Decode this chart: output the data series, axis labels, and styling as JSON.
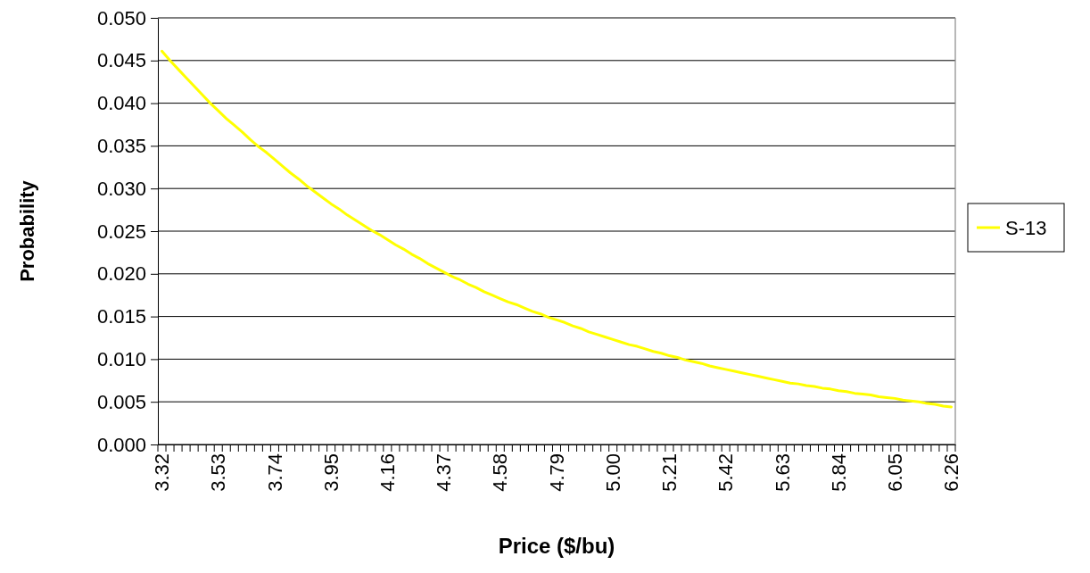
{
  "chart_data": {
    "type": "line",
    "xlabel": "Price ($/bu)",
    "ylabel": "Probability",
    "categories": [
      "3.32",
      null,
      null,
      null,
      null,
      null,
      null,
      "3.53",
      null,
      null,
      null,
      null,
      null,
      null,
      "3.74",
      null,
      null,
      null,
      null,
      null,
      null,
      "3.95",
      null,
      null,
      null,
      null,
      null,
      null,
      "4.16",
      null,
      null,
      null,
      null,
      null,
      null,
      "4.37",
      null,
      null,
      null,
      null,
      null,
      null,
      "4.58",
      null,
      null,
      null,
      null,
      null,
      null,
      "4.79",
      null,
      null,
      null,
      null,
      null,
      null,
      "5.00",
      null,
      null,
      null,
      null,
      null,
      null,
      "5.21",
      null,
      null,
      null,
      null,
      null,
      null,
      "5.42",
      null,
      null,
      null,
      null,
      null,
      null,
      "5.63",
      null,
      null,
      null,
      null,
      null,
      null,
      "5.84",
      null,
      null,
      null,
      null,
      null,
      null,
      "6.05",
      null,
      null,
      null,
      null,
      null,
      null,
      "6.26"
    ],
    "series": [
      {
        "name": "S-13",
        "color": "#ffff00",
        "values": [
          0.0461,
          0.045,
          0.044,
          0.043,
          0.042,
          0.041,
          0.04,
          0.0391,
          0.0382,
          0.0374,
          0.0366,
          0.0357,
          0.0349,
          0.0342,
          0.0334,
          0.0326,
          0.0318,
          0.0311,
          0.0303,
          0.0296,
          0.0289,
          0.0282,
          0.0276,
          0.0269,
          0.0263,
          0.0257,
          0.0251,
          0.0246,
          0.024,
          0.0234,
          0.0229,
          0.0223,
          0.0218,
          0.0212,
          0.0207,
          0.0202,
          0.0197,
          0.0193,
          0.0188,
          0.0184,
          0.0179,
          0.0175,
          0.0171,
          0.0167,
          0.0164,
          0.016,
          0.0156,
          0.0153,
          0.0149,
          0.0146,
          0.0143,
          0.0139,
          0.0136,
          0.0132,
          0.0129,
          0.0126,
          0.0123,
          0.012,
          0.0117,
          0.0115,
          0.0112,
          0.0109,
          0.0107,
          0.0104,
          0.0102,
          0.0099,
          0.0097,
          0.0095,
          0.0092,
          0.009,
          0.0088,
          0.0086,
          0.0084,
          0.0082,
          0.008,
          0.0078,
          0.0076,
          0.0074,
          0.0072,
          0.0071,
          0.0069,
          0.0068,
          0.0066,
          0.0065,
          0.0063,
          0.0062,
          0.006,
          0.0059,
          0.0058,
          0.0056,
          0.0055,
          0.0054,
          0.0052,
          0.0051,
          0.005,
          0.0048,
          0.0047,
          0.0045,
          0.0044
        ]
      }
    ],
    "ylim": [
      0,
      0.05
    ],
    "yticks": [
      {
        "value": 0,
        "label": "0.000"
      },
      {
        "value": 0.005,
        "label": "0.005"
      },
      {
        "value": 0.01,
        "label": "0.010"
      },
      {
        "value": 0.015,
        "label": "0.015"
      },
      {
        "value": 0.02,
        "label": "0.020"
      },
      {
        "value": 0.025,
        "label": "0.025"
      },
      {
        "value": 0.03,
        "label": "0.030"
      },
      {
        "value": 0.035,
        "label": "0.035"
      },
      {
        "value": 0.04,
        "label": "0.040"
      },
      {
        "value": 0.045,
        "label": "0.045"
      },
      {
        "value": 0.05,
        "label": "0.050"
      }
    ],
    "grid": "y",
    "legend": "right",
    "marker": "none",
    "line_style": "solid"
  }
}
